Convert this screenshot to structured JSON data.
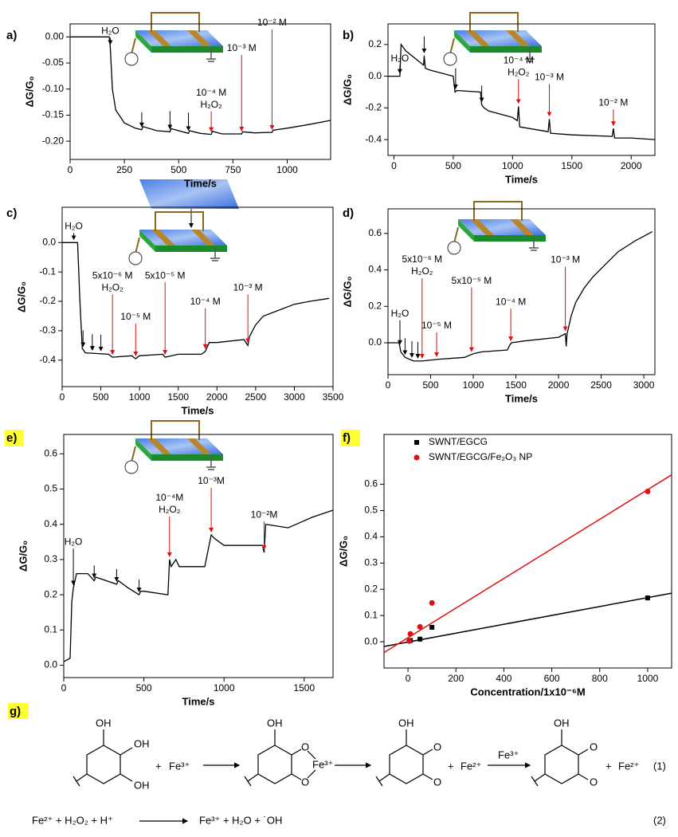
{
  "chart_data": [
    {
      "type": "line",
      "label": "a)",
      "xlabel": "Time/s",
      "ylabel": "ΔG/G₀",
      "color": "#000",
      "x": [
        0,
        180,
        185,
        195,
        210,
        250,
        300,
        330,
        335,
        400,
        460,
        465,
        545,
        550,
        600,
        650,
        655,
        700,
        790,
        795,
        850,
        930,
        935,
        1000,
        1100,
        1200
      ],
      "values": [
        0,
        0,
        -0.02,
        -0.1,
        -0.14,
        -0.165,
        -0.175,
        -0.178,
        -0.172,
        -0.18,
        -0.182,
        -0.176,
        -0.185,
        -0.18,
        -0.185,
        -0.187,
        -0.181,
        -0.186,
        -0.186,
        -0.182,
        -0.184,
        -0.183,
        -0.179,
        -0.175,
        -0.168,
        -0.16
      ],
      "xlim": [
        0,
        1200
      ],
      "xticks": [
        0,
        250,
        500,
        750,
        1000
      ],
      "ylim": [
        -0.235,
        0.025
      ],
      "yticks": [
        {
          "value": 0,
          "label": "0.00"
        },
        -0.05,
        {
          "value": -0.1,
          "label": "-0.10"
        },
        -0.15,
        {
          "value": -0.2,
          "label": "-0.20"
        }
      ],
      "annotations": [
        {
          "x": 185,
          "color": "#000",
          "text": [
            "H₂O"
          ]
        },
        {
          "x": 330,
          "color": "#000"
        },
        {
          "x": 460,
          "color": "#000"
        },
        {
          "x": 545,
          "color": "#000"
        },
        {
          "x": 650,
          "color": "#e01010",
          "text": [
            "10⁻⁴ M",
            "H₂O₂"
          ]
        },
        {
          "x": 790,
          "color": "#e01010",
          "text": [
            "10⁻³ M"
          ]
        },
        {
          "x": 930,
          "color": "#e01010",
          "text": [
            "10⁻² M"
          ]
        }
      ]
    },
    {
      "type": "line",
      "label": "b)",
      "xlabel": "Time/s",
      "ylabel": "ΔG/G₀",
      "color": "#000",
      "x": [
        -50,
        50,
        60,
        100,
        200,
        250,
        255,
        265,
        300,
        500,
        515,
        530,
        730,
        740,
        760,
        800,
        1000,
        1040,
        1050,
        1060,
        1300,
        1310,
        1320,
        1500,
        1840,
        1850,
        1860,
        2000,
        2200
      ],
      "values": [
        0,
        0,
        0.2,
        0.16,
        0.1,
        0.07,
        0.13,
        0.05,
        0.04,
        0,
        -0.1,
        -0.09,
        -0.1,
        -0.18,
        -0.2,
        -0.22,
        -0.26,
        -0.28,
        -0.19,
        -0.32,
        -0.35,
        -0.27,
        -0.36,
        -0.37,
        -0.38,
        -0.33,
        -0.39,
        -0.39,
        -0.4
      ],
      "xlim": [
        -50,
        2200
      ],
      "xticks": [
        0,
        500,
        1000,
        1500,
        2000
      ],
      "ylim": [
        -0.5,
        0.33
      ],
      "yticks": [
        -0.4,
        -0.2,
        {
          "value": 0,
          "label": "0.0"
        },
        0.2
      ],
      "annotations": [
        {
          "x": 50,
          "color": "#000",
          "text": [
            "H₂O"
          ]
        },
        {
          "x": 255,
          "color": "#000"
        },
        {
          "x": 520,
          "color": "#000"
        },
        {
          "x": 740,
          "color": "#000"
        },
        {
          "x": 1050,
          "color": "#e01010",
          "text": [
            "10⁻⁴ M",
            "H₂O₂"
          ]
        },
        {
          "x": 1310,
          "color": "#e01010",
          "text": [
            "10⁻³ M"
          ]
        },
        {
          "x": 1850,
          "color": "#e01010",
          "text": [
            "10⁻² M"
          ]
        }
      ]
    },
    {
      "type": "line",
      "label": "c)",
      "xlabel": "Time/s",
      "ylabel": "ΔG/G₀",
      "color": "#000",
      "x": [
        0,
        200,
        230,
        260,
        300,
        600,
        650,
        900,
        950,
        1000,
        1300,
        1330,
        1500,
        1800,
        1850,
        1900,
        2000,
        2350,
        2400,
        2420,
        2500,
        2600,
        2800,
        3000,
        3200,
        3450
      ],
      "values": [
        0,
        0,
        -0.2,
        -0.36,
        -0.375,
        -0.38,
        -0.39,
        -0.385,
        -0.395,
        -0.385,
        -0.38,
        -0.39,
        -0.38,
        -0.38,
        -0.37,
        -0.34,
        -0.34,
        -0.33,
        -0.35,
        -0.32,
        -0.28,
        -0.25,
        -0.23,
        -0.21,
        -0.2,
        -0.19
      ],
      "xlim": [
        0,
        3500
      ],
      "xticks": [
        0,
        500,
        1000,
        1500,
        2000,
        2500,
        3000,
        3500
      ],
      "ylim": [
        -0.49,
        0.12
      ],
      "yticks": [
        -0.4,
        -0.3,
        -0.2,
        -0.1,
        {
          "value": 0,
          "label": "0.0"
        }
      ],
      "annotations": [
        {
          "x": 150,
          "color": "#000",
          "text": [
            "H₂O"
          ]
        },
        {
          "x": 270,
          "color": "#000"
        },
        {
          "x": 390,
          "color": "#000"
        },
        {
          "x": 500,
          "color": "#000"
        },
        {
          "x": 650,
          "color": "#e01010",
          "text": [
            "5x10⁻⁶ M",
            "H₂O₂"
          ]
        },
        {
          "x": 950,
          "color": "#e01010",
          "text": [
            "10⁻⁵ M"
          ]
        },
        {
          "x": 1330,
          "color": "#e01010",
          "text": [
            "5x10⁻⁵ M"
          ]
        },
        {
          "x": 1850,
          "color": "#e01010",
          "text": [
            "10⁻⁴ M"
          ]
        },
        {
          "x": 2400,
          "color": "#e01010",
          "text": [
            "10⁻³ M"
          ]
        }
      ]
    },
    {
      "type": "line",
      "label": "d)",
      "xlabel": "Time/s",
      "ylabel": "ΔG/G₀",
      "color": "#000",
      "x": [
        0,
        130,
        150,
        200,
        300,
        400,
        600,
        900,
        1000,
        1100,
        1400,
        1430,
        1450,
        1600,
        2000,
        2080,
        2090,
        2100,
        2150,
        2200,
        2300,
        2400,
        2550,
        2700,
        2900,
        3100
      ],
      "values": [
        0,
        0,
        -0.05,
        -0.08,
        -0.1,
        -0.1,
        -0.09,
        -0.08,
        -0.06,
        -0.05,
        -0.04,
        -0.01,
        0,
        0.01,
        0.03,
        0.05,
        -0.02,
        0.05,
        0.15,
        0.22,
        0.3,
        0.36,
        0.43,
        0.5,
        0.56,
        0.61
      ],
      "xlim": [
        0,
        3130
      ],
      "xticks": [
        0,
        500,
        1000,
        1500,
        2000,
        2500,
        3000
      ],
      "ylim": [
        -0.175,
        0.735
      ],
      "yticks": [
        {
          "value": 0,
          "label": "0.0"
        },
        0.2,
        0.4,
        0.6
      ],
      "annotations": [
        {
          "x": 140,
          "color": "#000",
          "text": [
            "H₂O"
          ]
        },
        {
          "x": 200,
          "color": "#000"
        },
        {
          "x": 280,
          "color": "#000"
        },
        {
          "x": 350,
          "color": "#000"
        },
        {
          "x": 400,
          "color": "#e01010",
          "text": [
            "5x10⁻⁶ M",
            "H₂O₂"
          ]
        },
        {
          "x": 570,
          "color": "#e01010",
          "text": [
            "10⁻⁵ M"
          ]
        },
        {
          "x": 980,
          "color": "#e01010",
          "text": [
            "5x10⁻⁵ M"
          ]
        },
        {
          "x": 1440,
          "color": "#e01010",
          "text": [
            "10⁻⁴ M"
          ]
        },
        {
          "x": 2080,
          "color": "#e01010",
          "text": [
            "10⁻³ M"
          ]
        }
      ]
    },
    {
      "type": "line",
      "label": "e)",
      "highlight": true,
      "xlabel": "Time/s",
      "ylabel": "ΔG/G₀",
      "color": "#000",
      "x": [
        0,
        40,
        50,
        60,
        80,
        150,
        190,
        200,
        330,
        340,
        400,
        470,
        480,
        500,
        650,
        660,
        670,
        700,
        720,
        880,
        920,
        940,
        1000,
        1100,
        1200,
        1240,
        1250,
        1260,
        1400,
        1550,
        1680
      ],
      "values": [
        0.01,
        0.02,
        0.18,
        0.22,
        0.26,
        0.26,
        0.24,
        0.25,
        0.23,
        0.24,
        0.22,
        0.2,
        0.21,
        0.21,
        0.2,
        0.3,
        0.28,
        0.3,
        0.28,
        0.28,
        0.37,
        0.36,
        0.34,
        0.34,
        0.34,
        0.34,
        0.32,
        0.4,
        0.39,
        0.42,
        0.44
      ],
      "xlim": [
        0,
        1680
      ],
      "xticks": [
        0,
        500,
        1000,
        1500
      ],
      "ylim": [
        -0.035,
        0.655
      ],
      "yticks": [
        {
          "value": 0,
          "label": "0.0"
        },
        0.1,
        0.2,
        0.3,
        0.4,
        0.5,
        0.6
      ],
      "annotations": [
        {
          "x": 60,
          "color": "#000",
          "text": [
            "H₂O"
          ]
        },
        {
          "x": 190,
          "color": "#000"
        },
        {
          "x": 330,
          "color": "#000"
        },
        {
          "x": 470,
          "color": "#000"
        },
        {
          "x": 660,
          "color": "#e01010",
          "text": [
            "10⁻⁴M",
            "H₂O₂"
          ]
        },
        {
          "x": 920,
          "color": "#e01010",
          "text": [
            "10⁻³M"
          ]
        },
        {
          "x": 1250,
          "color": "#e01010",
          "text": [
            "10⁻²M"
          ]
        }
      ]
    },
    {
      "type": "scatter",
      "label": "f)",
      "highlight": true,
      "xlabel": "Concentration/1x10⁻⁶M",
      "ylabel": "ΔG/G₀",
      "xlim": [
        -100,
        1100
      ],
      "xticks": [
        0,
        200,
        400,
        600,
        800,
        1000
      ],
      "ylim": [
        -0.1,
        0.79
      ],
      "yticks": [
        {
          "value": 0,
          "label": "0.0"
        },
        0.1,
        0.2,
        0.3,
        0.4,
        0.5,
        0.6
      ],
      "series": [
        {
          "name": "SWNT/EGCG",
          "color": "#000",
          "marker": "square",
          "x": [
            10,
            50,
            100,
            1000
          ],
          "values": [
            0.005,
            0.01,
            0.055,
            0.167
          ]
        },
        {
          "name": "SWNT/EGCG/Fe₂O₃ NP",
          "color": "#e01010",
          "marker": "circle",
          "x": [
            5,
            10,
            50,
            100,
            1000
          ],
          "values": [
            0.003,
            0.03,
            0.057,
            0.148,
            0.573
          ]
        }
      ],
      "fits": [
        {
          "color": "#000",
          "x": [
            -100,
            1100
          ],
          "values": [
            -0.018,
            0.185
          ]
        },
        {
          "color": "#e01010",
          "x": [
            -100,
            1100
          ],
          "values": [
            -0.041,
            0.636
          ]
        }
      ]
    }
  ],
  "scheme": {
    "label": "g)",
    "highlight": true,
    "texts": [
      "OH",
      "OH",
      "OH",
      "+",
      "Fe³⁺",
      "OH",
      "O",
      "O",
      "Fe³⁺",
      "OH",
      "O",
      "O",
      "+",
      "Fe²⁺",
      "Fe³⁺",
      "OH",
      "O",
      "O",
      "+",
      "Fe²⁺",
      "(1)",
      "Fe²⁺ + H₂O₂ + H⁺",
      "Fe³⁺ + H₂O + ˙OH",
      "(2)"
    ]
  }
}
